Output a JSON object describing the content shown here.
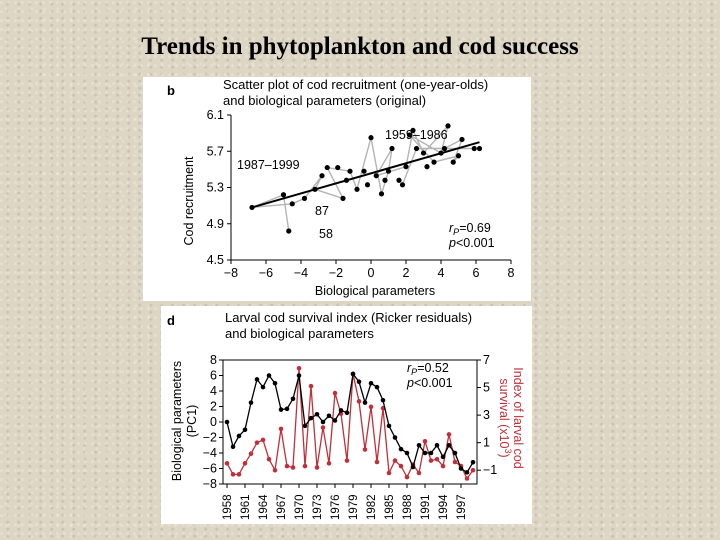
{
  "slide": {
    "title": "Trends in phytoplankton and cod success"
  },
  "colors": {
    "background": "#ddd6c4",
    "panel": "#ffffff",
    "black_series": "#000000",
    "red_series": "#c0303a",
    "grey_path": "#b4b4b4"
  },
  "chart_data": [
    {
      "type": "scatter",
      "panel_letter": "b",
      "title": "Scatter plot of cod recruitment (one-year-olds)",
      "subtitle": "and biological parameters (original)",
      "xlabel": "Biological parameters",
      "ylabel": "Cod recruitment",
      "xlim": [
        -8,
        8
      ],
      "ylim": [
        4.5,
        6.1
      ],
      "xticks": [
        "−8",
        "−6",
        "−4",
        "−2",
        "0",
        "2",
        "4",
        "6",
        "8"
      ],
      "xtick_values": [
        -8,
        -6,
        -4,
        -2,
        0,
        2,
        4,
        6,
        8
      ],
      "yticks": [
        "4.5",
        "4.9",
        "5.3",
        "5.7",
        "6.1"
      ],
      "ytick_values": [
        4.5,
        4.9,
        5.3,
        5.7,
        6.1
      ],
      "labels": {
        "period_late": "1987–1999",
        "period_early": "1959–1986",
        "year_87": "87",
        "year_58": "58"
      },
      "stats": {
        "r_prefix": "r",
        "r_sub": "P",
        "r_value": "=0.69",
        "p_prefix": "p",
        "p_value": "<0.001"
      },
      "fit_line": [
        [
          -6.8,
          5.08
        ],
        [
          6.2,
          5.8
        ]
      ],
      "points": [
        [
          -6.8,
          5.08
        ],
        [
          -5.0,
          5.22
        ],
        [
          -4.7,
          4.82
        ],
        [
          -4.5,
          5.12
        ],
        [
          -3.8,
          5.18
        ],
        [
          -3.2,
          5.28
        ],
        [
          -2.8,
          5.43
        ],
        [
          -2.5,
          5.52
        ],
        [
          -1.9,
          5.52
        ],
        [
          -1.6,
          5.18
        ],
        [
          -1.4,
          5.38
        ],
        [
          -1.2,
          5.48
        ],
        [
          -0.8,
          5.28
        ],
        [
          -0.4,
          5.48
        ],
        [
          -0.2,
          5.33
        ],
        [
          0.0,
          5.85
        ],
        [
          0.3,
          5.43
        ],
        [
          0.6,
          5.23
        ],
        [
          0.8,
          5.38
        ],
        [
          1.0,
          5.48
        ],
        [
          1.2,
          5.73
        ],
        [
          1.6,
          5.38
        ],
        [
          1.8,
          5.33
        ],
        [
          2.0,
          5.53
        ],
        [
          2.2,
          5.88
        ],
        [
          2.4,
          5.93
        ],
        [
          2.6,
          5.73
        ],
        [
          3.0,
          5.68
        ],
        [
          3.2,
          5.53
        ],
        [
          3.6,
          5.58
        ],
        [
          4.0,
          5.68
        ],
        [
          4.2,
          5.73
        ],
        [
          4.4,
          5.98
        ],
        [
          4.7,
          5.58
        ],
        [
          5.0,
          5.65
        ],
        [
          5.2,
          5.83
        ],
        [
          5.9,
          5.73
        ],
        [
          6.2,
          5.73
        ]
      ],
      "path_order": [
        [
          -4.7,
          4.82
        ],
        [
          -5.0,
          5.22
        ],
        [
          -6.8,
          5.08
        ],
        [
          -4.5,
          5.12
        ],
        [
          -3.8,
          5.18
        ],
        [
          -2.8,
          5.43
        ],
        [
          -3.2,
          5.28
        ],
        [
          -1.6,
          5.18
        ],
        [
          -2.5,
          5.52
        ],
        [
          -1.2,
          5.48
        ],
        [
          -0.8,
          5.28
        ],
        [
          0.0,
          5.85
        ],
        [
          0.6,
          5.23
        ],
        [
          1.0,
          5.48
        ],
        [
          1.2,
          5.73
        ],
        [
          0.3,
          5.43
        ],
        [
          2.0,
          5.53
        ],
        [
          2.4,
          5.93
        ],
        [
          3.0,
          5.68
        ],
        [
          4.4,
          5.98
        ],
        [
          4.0,
          5.68
        ],
        [
          2.2,
          5.88
        ],
        [
          3.6,
          5.58
        ],
        [
          5.0,
          5.65
        ],
        [
          4.7,
          5.58
        ],
        [
          5.2,
          5.83
        ],
        [
          4.2,
          5.73
        ],
        [
          5.9,
          5.73
        ],
        [
          2.6,
          5.73
        ],
        [
          1.8,
          5.33
        ]
      ]
    },
    {
      "type": "line",
      "panel_letter": "d",
      "title": "Larval cod survival index (Ricker residuals)",
      "subtitle": "and biological parameters",
      "ylabel_left": "Biological parameters",
      "ylabel_left_sub": "(PC1)",
      "ylabel_right": "Index of larval cod",
      "ylabel_right_sub": "survival (x10",
      "ylabel_right_exp": "3",
      "ylabel_right_close": ")",
      "ylim_left": [
        -8,
        8
      ],
      "ylim_right": [
        -2,
        7
      ],
      "yticks_left": [
        "8",
        "6",
        "4",
        "2",
        "0",
        "−2",
        "−4",
        "−6",
        "−8"
      ],
      "yticks_left_values": [
        8,
        6,
        4,
        2,
        0,
        -2,
        -4,
        -6,
        -8
      ],
      "yticks_right": [
        "7",
        "5",
        "3",
        "1",
        "−1"
      ],
      "yticks_right_values": [
        7,
        5,
        3,
        1,
        -1
      ],
      "x_start": 1958,
      "x_end": 1999,
      "xticks": [
        "1958",
        "1961",
        "1964",
        "1967",
        "1970",
        "1973",
        "1976",
        "1979",
        "1982",
        "1985",
        "1988",
        "1991",
        "1994",
        "1997"
      ],
      "xtick_values": [
        1958,
        1961,
        1964,
        1967,
        1970,
        1973,
        1976,
        1979,
        1982,
        1985,
        1988,
        1991,
        1994,
        1997
      ],
      "stats": {
        "r_prefix": "r",
        "r_sub": "P",
        "r_value": "=0.52",
        "p_prefix": "p",
        "p_value": "<0.001"
      },
      "series": [
        {
          "name": "Biological parameters (PC1)",
          "axis": "left",
          "color": "#000000",
          "years": [
            1958,
            1959,
            1960,
            1961,
            1962,
            1963,
            1964,
            1965,
            1966,
            1967,
            1968,
            1969,
            1970,
            1971,
            1972,
            1973,
            1974,
            1975,
            1976,
            1977,
            1978,
            1979,
            1980,
            1981,
            1982,
            1983,
            1984,
            1985,
            1986,
            1987,
            1988,
            1989,
            1990,
            1991,
            1992,
            1993,
            1994,
            1995,
            1996,
            1997,
            1998,
            1999
          ],
          "values": [
            0.0,
            -3.2,
            -1.8,
            -1.0,
            2.5,
            5.5,
            4.5,
            6.0,
            5.0,
            1.6,
            1.7,
            3.0,
            6.0,
            -0.5,
            0.5,
            1.0,
            0.0,
            0.8,
            0.2,
            1.5,
            1.2,
            6.2,
            5.2,
            2.5,
            5.0,
            4.5,
            2.8,
            -0.5,
            -2.0,
            -3.5,
            -4.0,
            -5.8,
            -3.0,
            -4.0,
            -4.0,
            -3.0,
            -4.5,
            -3.0,
            -4.0,
            -6.0,
            -6.5,
            -5.2
          ]
        },
        {
          "name": "Index of larval cod survival (x10^3)",
          "axis": "right",
          "color": "#c0303a",
          "years": [
            1958,
            1959,
            1960,
            1961,
            1962,
            1963,
            1964,
            1965,
            1966,
            1967,
            1968,
            1969,
            1970,
            1971,
            1972,
            1973,
            1974,
            1975,
            1976,
            1977,
            1978,
            1979,
            1980,
            1981,
            1982,
            1983,
            1984,
            1985,
            1986,
            1987,
            1988,
            1989,
            1990,
            1991,
            1992,
            1993,
            1994,
            1995,
            1996,
            1997,
            1998,
            1999
          ],
          "values": [
            -0.5,
            -1.3,
            -1.3,
            -0.5,
            0.2,
            1.0,
            1.2,
            -0.2,
            -1.0,
            2.0,
            -0.7,
            -0.8,
            6.4,
            -0.7,
            5.1,
            -0.8,
            2.1,
            -0.5,
            4.6,
            3.1,
            -0.3,
            6.0,
            4.0,
            0.5,
            3.6,
            -0.4,
            3.5,
            -1.2,
            -0.3,
            -0.7,
            -1.5,
            -0.6,
            -1.2,
            1.1,
            -0.3,
            -0.2,
            -0.7,
            1.6,
            -0.4,
            -0.7,
            -1.6,
            -1.0
          ]
        }
      ]
    }
  ]
}
